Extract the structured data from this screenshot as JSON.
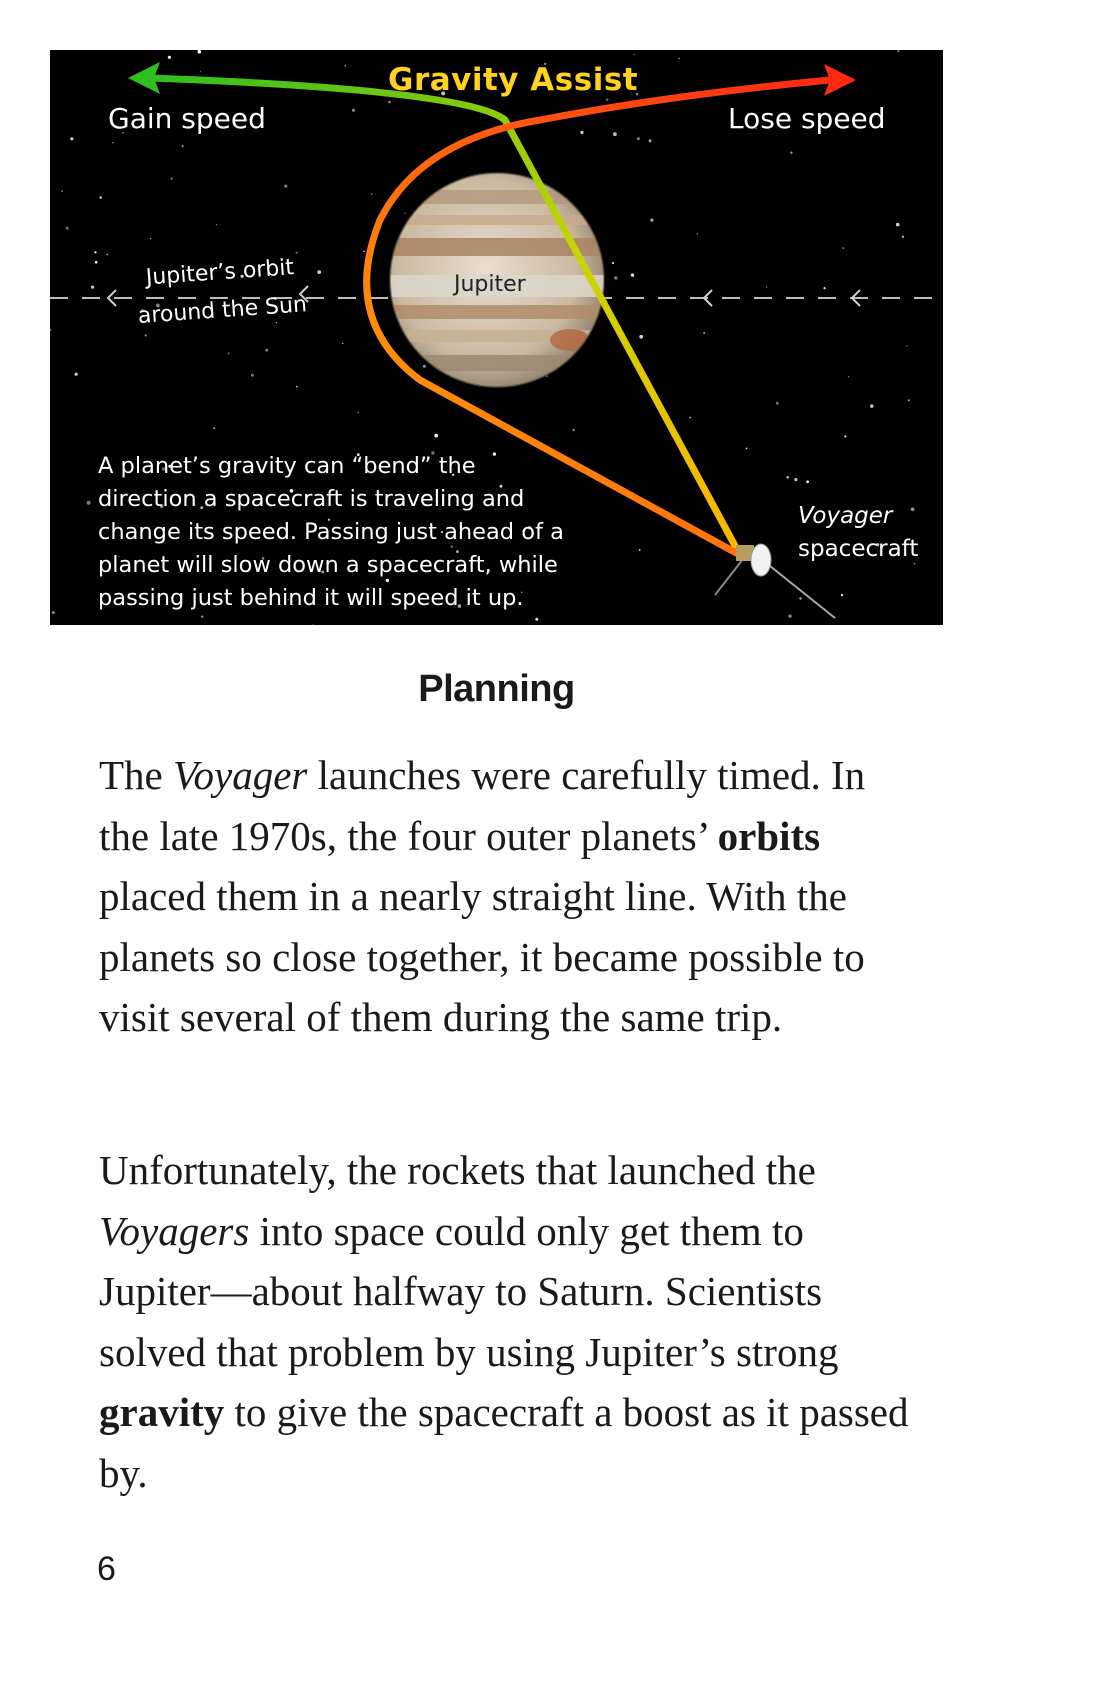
{
  "figure": {
    "title": "Gravity Assist",
    "gain_label": "Gain speed",
    "lose_label": "Lose speed",
    "orbit_label_line1": "Jupiter’s orbit",
    "orbit_label_line2": "around the Sun",
    "planet_label": "Jupiter",
    "caption_lines": [
      "A planet’s gravity can “bend” the",
      "direction a spacecraft is traveling and",
      "change its speed. Passing just ahead of a",
      "planet will slow down a spacecraft, while",
      "passing just behind it will speed it up."
    ],
    "spacecraft_label_italic": "Voyager",
    "spacecraft_label": "spacecraft",
    "colors": {
      "gain_arrow": "#2fbf1f",
      "lose_arrow": "#ff2a10",
      "title": "#ffd21f",
      "path_slow": "#ffb400"
    }
  },
  "heading": "Planning",
  "paragraph1": {
    "t1": "The ",
    "i1": "Voyager",
    "t2": " launches were carefully timed. In the late 1970s, the four outer planets’ ",
    "b1": "orbits",
    "t3": " placed them in a nearly straight line. With the planets so close together, it became possible to visit several of them during the same trip."
  },
  "paragraph2": {
    "t1": "Unfortunately, the rockets that launched the ",
    "i1": "Voyagers",
    "t2": " into space could only get them to Jupiter—about halfway to Saturn. Scientists solved that problem by using Jupiter’s strong ",
    "b1": "gravity",
    "t3": " to give the spacecraft a boost as it passed by."
  },
  "page_number": "6"
}
